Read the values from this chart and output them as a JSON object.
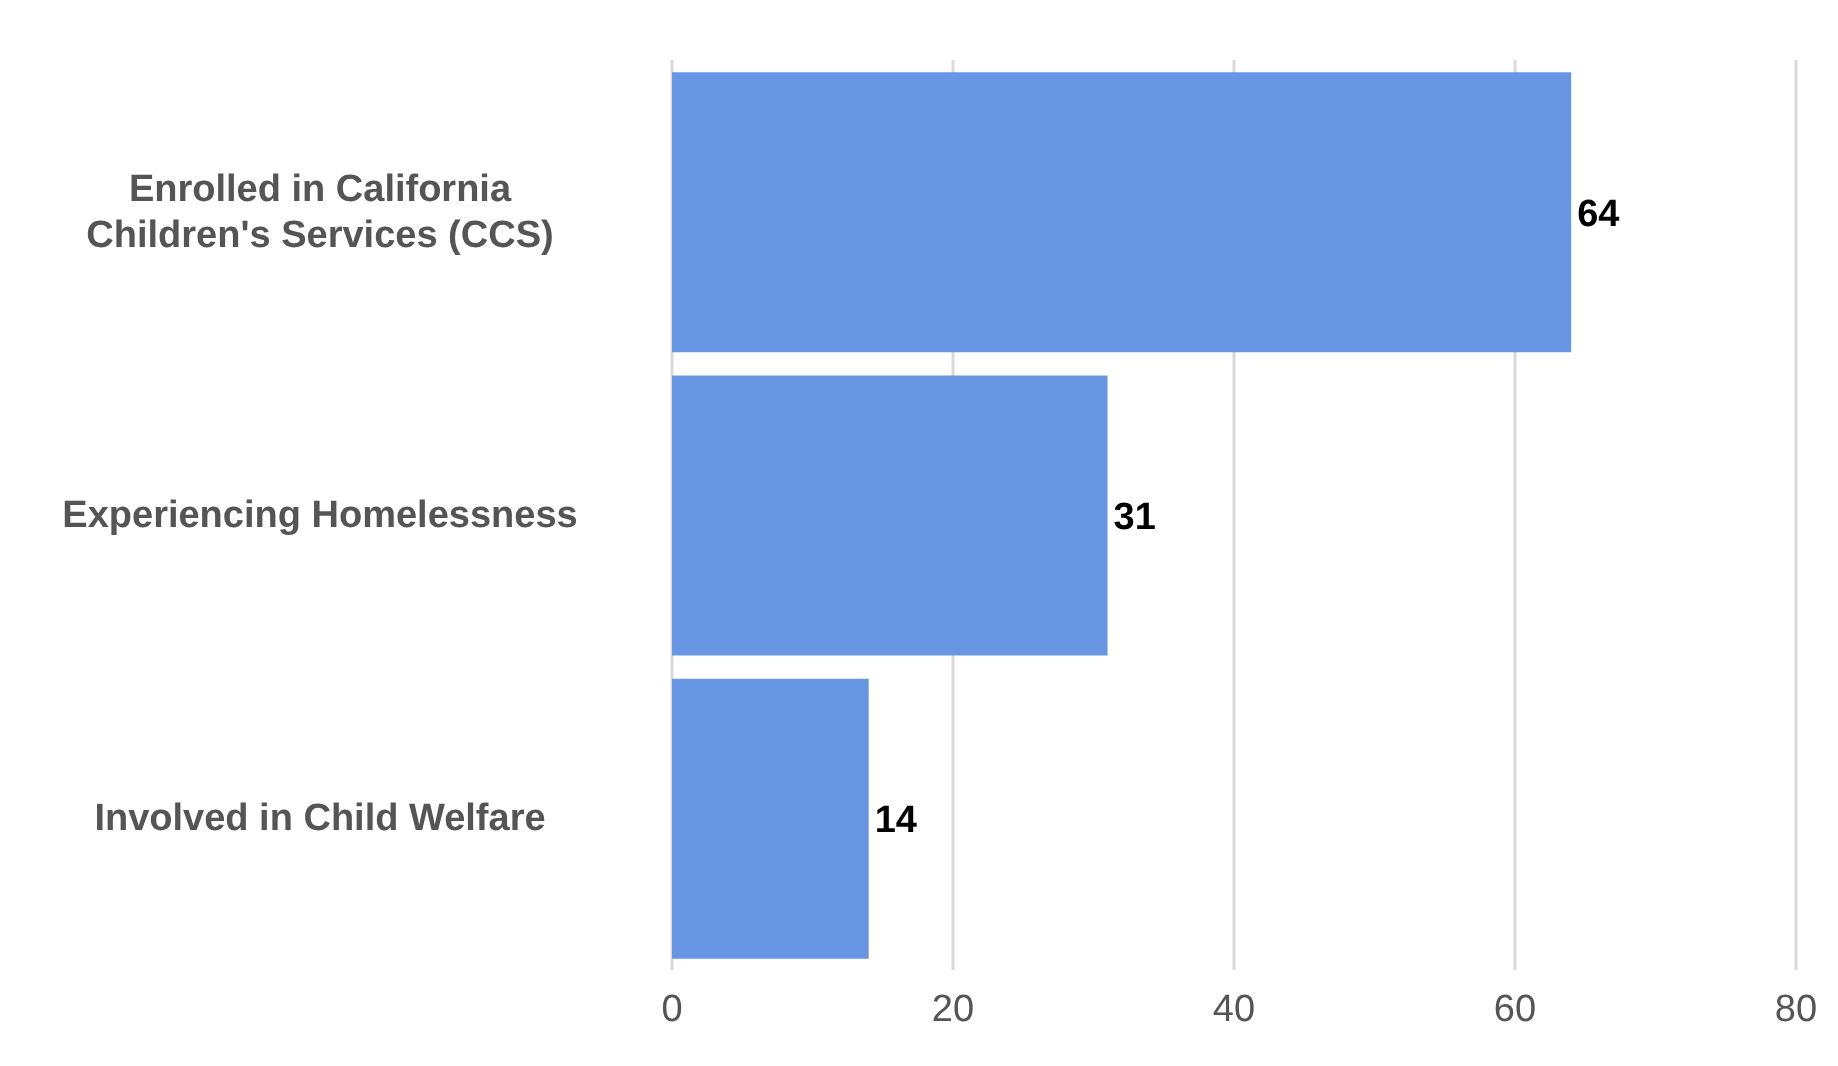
{
  "chart_data": {
    "type": "bar",
    "orientation": "horizontal",
    "categories": [
      "Enrolled in California Children's Services (CCS)",
      "Experiencing Homelessness",
      "Involved in Child Welfare"
    ],
    "values": [
      64,
      31,
      14
    ],
    "color": "#6896e3",
    "xlim": [
      0,
      80
    ],
    "xticks": [
      0,
      20,
      40,
      60,
      80
    ],
    "grid": "x",
    "data_labels": true
  }
}
